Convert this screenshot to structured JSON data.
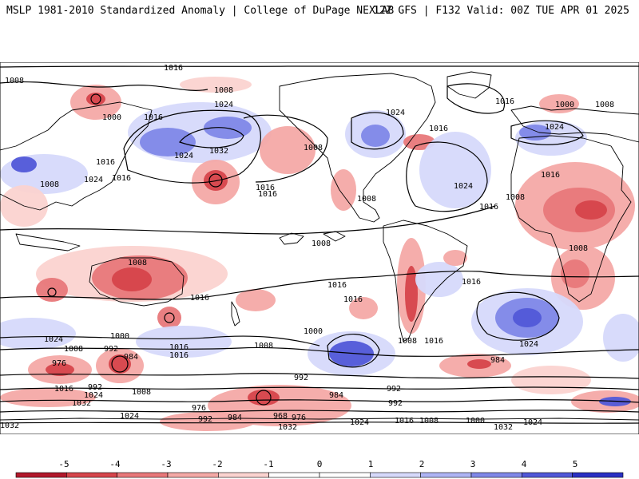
{
  "header": {
    "left": "MSLP 1981-2010 Standardized Anomaly | College of DuPage NEXLAB",
    "right": "12Z GFS | F132 Valid: 00Z TUE APR 01 2025"
  },
  "colors": {
    "neg5": "#b2182b",
    "neg4": "#d6454b",
    "neg3": "#e8787a",
    "neg2": "#f4a9a6",
    "neg1": "#fbd3d0",
    "pos1": "#d6d9fb",
    "pos2": "#aeb4f4",
    "pos3": "#8088e8",
    "pos4": "#5158d8",
    "pos5": "#2a30c4",
    "land": "#ffffff",
    "coast": "#000000"
  },
  "colorbar": {
    "ticks": [
      "-5",
      "-4",
      "-3",
      "-2",
      "-1",
      "0",
      "1",
      "2",
      "3",
      "4",
      "5"
    ]
  },
  "isobar_labels": [
    "1016",
    "1008",
    "1024",
    "1000",
    "1016",
    "1024",
    "1032",
    "1008",
    "1016",
    "1024",
    "1016",
    "1008",
    "1016",
    "1024",
    "1000",
    "1008",
    "1016",
    "1024",
    "1008",
    "1016",
    "1016",
    "1008",
    "1024",
    "1016",
    "1016",
    "1008",
    "1008",
    "1008",
    "1016",
    "1016",
    "1016",
    "1016",
    "1008",
    "1024",
    "1016",
    "1008",
    "1016",
    "1000",
    "1024",
    "1008",
    "992",
    "984",
    "976",
    "1016",
    "992",
    "1024",
    "1008",
    "1032",
    "1000",
    "976",
    "984",
    "992",
    "968",
    "976",
    "1024",
    "1032",
    "1016",
    "1008",
    "1000",
    "1024",
    "1032",
    "984",
    "992",
    "992",
    "984",
    "1032",
    "1008",
    "992",
    "1016",
    "1024"
  ]
}
